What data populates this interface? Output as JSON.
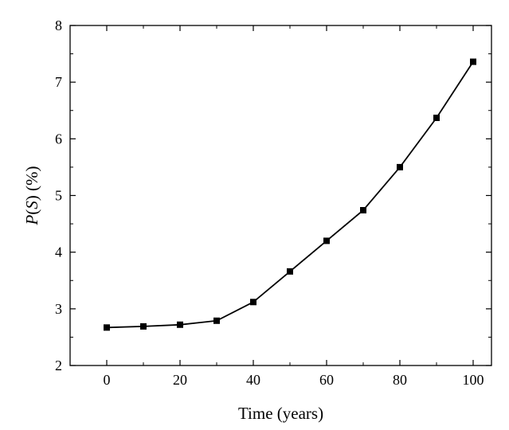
{
  "chart_data": {
    "type": "line",
    "xlabel": "Time (years)",
    "ylabel": {
      "var": "P",
      "open": "(",
      "arg": "S",
      "close": ")",
      "unit": " (%)"
    },
    "xlim": [
      -10,
      105
    ],
    "ylim": [
      2,
      8
    ],
    "xticks": [
      0,
      20,
      40,
      60,
      80,
      100
    ],
    "yticks": [
      2,
      3,
      4,
      5,
      6,
      7,
      8
    ],
    "grid": false,
    "marker": "square",
    "color": "#000000",
    "series": [
      {
        "x": [
          0,
          10,
          20,
          30,
          40,
          50,
          60,
          70,
          80,
          90,
          100
        ],
        "y": [
          2.67,
          2.69,
          2.72,
          2.79,
          3.12,
          3.66,
          4.2,
          4.74,
          5.5,
          6.37,
          7.36
        ]
      }
    ]
  }
}
